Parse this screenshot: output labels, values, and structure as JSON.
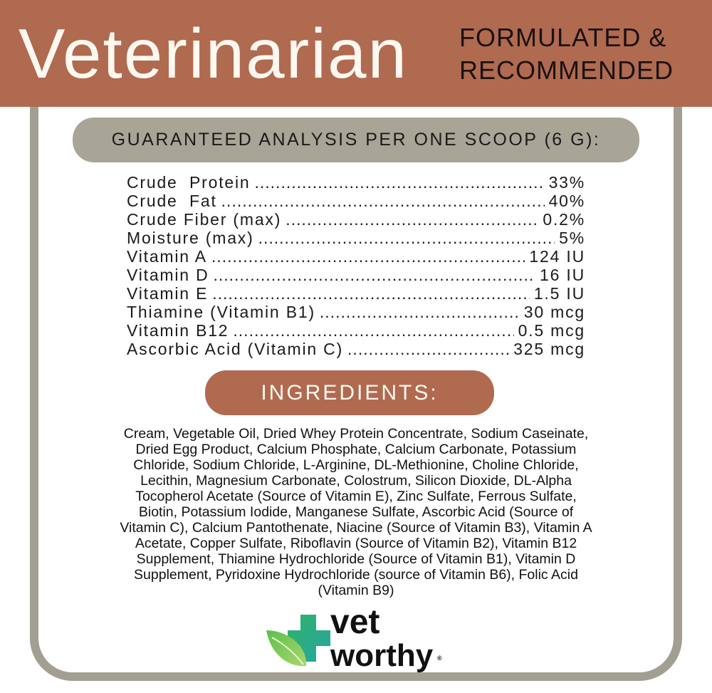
{
  "header": {
    "title": "Veterinarian",
    "tagline_lines": [
      "FORMULATED &",
      "RECOMMENDED"
    ]
  },
  "analysis": {
    "heading": "GUARANTEED ANALYSIS PER ONE SCOOP (6 G):",
    "rows": [
      {
        "name": "Crude  Protein",
        "value": "33%"
      },
      {
        "name": "Crude  Fat",
        "value": "40%"
      },
      {
        "name": "Crude Fiber (max)",
        "value": "0.2%"
      },
      {
        "name": "Moisture (max)",
        "value": "5%"
      },
      {
        "name": "Vitamin A",
        "value": "124 IU"
      },
      {
        "name": "Vitamin D",
        "value": "16 IU"
      },
      {
        "name": "Vitamin E",
        "value": "1.5 IU"
      },
      {
        "name": "Thiamine (Vitamin B1)",
        "value": "30 mcg"
      },
      {
        "name": "Vitamin B12",
        "value": "0.5 mcg"
      },
      {
        "name": "Ascorbic Acid (Vitamin C)",
        "value": "325 mcg"
      }
    ]
  },
  "ingredients": {
    "heading": "INGREDIENTS:",
    "lines": [
      "Cream, Vegetable Oil, Dried Whey Protein Concentrate, Sodium Caseinate,",
      "Dried Egg Product, Calcium Phosphate, Calcium Carbonate, Potassium",
      "Chloride, Sodium Chloride, L-Arginine, DL-Methionine, Choline Chloride,",
      "Lecithin, Magnesium Carbonate, Colostrum, Silicon Dioxide, DL-Alpha",
      "Tocopherol Acetate (Source of Vitamin E), Zinc Sulfate, Ferrous Sulfate,",
      "Biotin, Potassium Iodide, Manganese Sulfate, Ascorbic Acid (Source of",
      "Vitamin C), Calcium Pantothenate, Niacine (Source of Vitamin B3), Vitamin A",
      "Acetate, Copper Sulfate, Riboflavin (Source of Vitamin B2), Vitamin B12",
      "Supplement, Thiamine Hydrochloride (Source of Vitamin B1), Vitamin D",
      "Supplement, Pyridoxine Hydrochloride (source of Vitamin B6), Folic Acid",
      "(Vitamin B9)"
    ]
  },
  "logo": {
    "line1": "vet",
    "line2": "worthy",
    "mark": "®"
  },
  "colors": {
    "brown": "#b06a50",
    "gray": "#a8a597",
    "green": "#3db86a"
  }
}
